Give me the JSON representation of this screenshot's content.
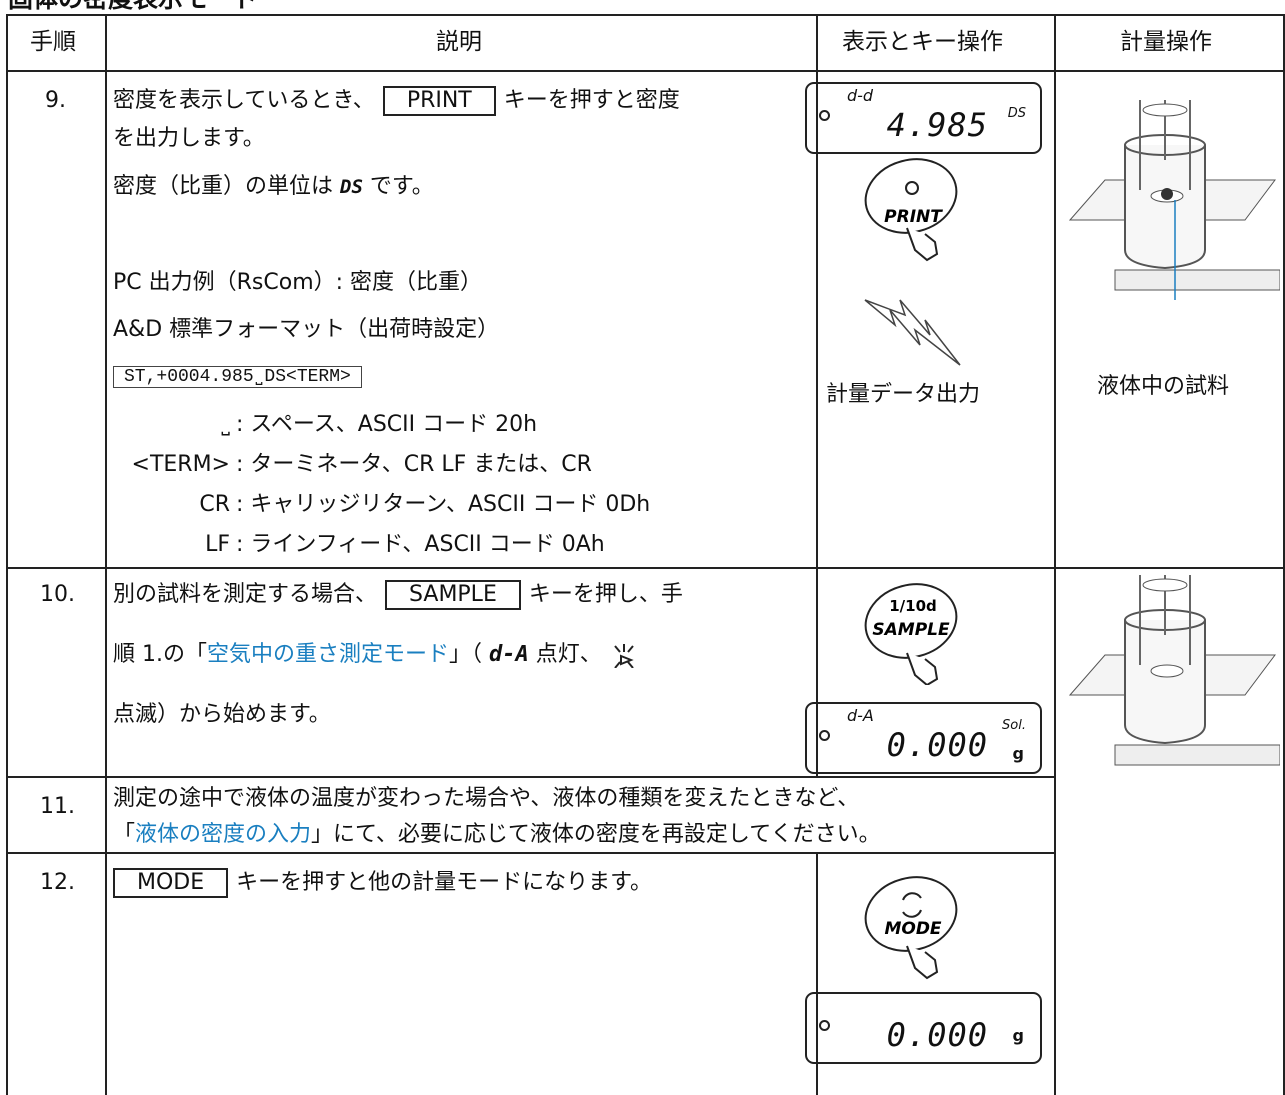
{
  "header": {
    "title": "固体の密度表示モード"
  },
  "table": {
    "columns": [
      "手順",
      "説明",
      "表示とキー操作",
      "計量操作"
    ],
    "rows": [
      {
        "step": "9.",
        "line1": [
          "密度を表示しているとき、",
          "PRINT",
          "キーを押すと密度"
        ],
        "line2": "を出力します。",
        "line3": [
          "密度（比重）の単位は",
          "DS",
          "です。"
        ],
        "output_title": "PC 出力例（RsCom）: 密度（比重）",
        "format": "A&D 標準フォーマット（出荷時設定）",
        "code": "ST,+0004.985˽DS<TERM>",
        "legend": [
          [
            "˽",
            ": スペース、ASCII コード 20h"
          ],
          [
            "<TERM>",
            ": ターミネータ、CR LF または、CR"
          ],
          [
            "CR",
            ": キャリッジリターン、ASCII コード 0Dh"
          ],
          [
            "LF",
            ": ラインフィード、ASCII コード 0Ah"
          ]
        ],
        "display": {
          "mode": "d-d",
          "value": "4.985",
          "unit": "DS"
        },
        "button": "PRINT",
        "caption": "計量データ出力",
        "image_caption": "液体中の試料"
      },
      {
        "step": "10.",
        "line1": [
          "別の試料を測定する場合、",
          "SAMPLE",
          "キーを押し、手"
        ],
        "line2": [
          "順 1.の「",
          "空気中の重さ測定モード",
          "」（",
          "d-A",
          "点灯、"
        ],
        "line3": "点滅）から始めます。",
        "button": [
          "1/10d",
          "SAMPLE"
        ],
        "display": {
          "mode": "d-A",
          "value": "0.000",
          "unit": "Sol.",
          "unit2": "g"
        }
      },
      {
        "step": "11.",
        "line1": "測定の途中で液体の温度が変わった場合や、液体の種類を変えたときなど、",
        "line2": [
          "「",
          "液体の密度の入力",
          "」にて、必要に応じて液体の密度を再設定してください。"
        ]
      },
      {
        "step": "12.",
        "line1": [
          "MODE",
          "キーを押すと他の計量モードになります。"
        ],
        "button": "MODE",
        "display": {
          "value": "0.000",
          "unit": "g"
        }
      }
    ]
  }
}
